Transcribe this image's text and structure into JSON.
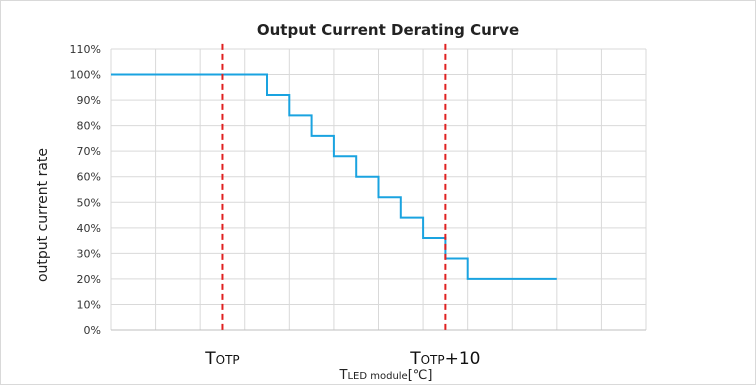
{
  "chart_data": {
    "type": "line",
    "title": "Output Current Derating Curve",
    "ylabel": "output current rate",
    "xlabel": {
      "prefix": "T",
      "sub": "LED module",
      "suffix": "[℃]"
    },
    "yticks": [
      "0%",
      "10%",
      "20%",
      "30%",
      "40%",
      "50%",
      "60%",
      "70%",
      "80%",
      "90%",
      "100%",
      "110%"
    ],
    "ylim": [
      0,
      110
    ],
    "xlim": [
      0,
      12
    ],
    "x_gridlines": [
      0,
      1,
      2,
      3,
      4,
      5,
      6,
      7,
      8,
      9,
      10,
      11,
      12
    ],
    "y_gridlines": [
      0,
      10,
      20,
      30,
      40,
      50,
      60,
      70,
      80,
      90,
      100,
      110
    ],
    "grid": true,
    "series": [
      {
        "color": "#1aa3e0",
        "step_points": [
          [
            0,
            100
          ],
          [
            3,
            100
          ],
          [
            3.5,
            100
          ],
          [
            3.5,
            92
          ],
          [
            4,
            92
          ],
          [
            4,
            84
          ],
          [
            4.5,
            84
          ],
          [
            4.5,
            76
          ],
          [
            5,
            76
          ],
          [
            5,
            68
          ],
          [
            5.5,
            68
          ],
          [
            5.5,
            60
          ],
          [
            6,
            60
          ],
          [
            6,
            52
          ],
          [
            6.5,
            52
          ],
          [
            6.5,
            44
          ],
          [
            7,
            44
          ],
          [
            7,
            36
          ],
          [
            7.5,
            36
          ],
          [
            7.5,
            28
          ],
          [
            8,
            28
          ],
          [
            8,
            20
          ],
          [
            8.5,
            20
          ],
          [
            9,
            20
          ],
          [
            9.5,
            20
          ],
          [
            10.0,
            20
          ]
        ]
      }
    ],
    "markers": [
      {
        "x": 2.5,
        "color": "#e02020",
        "label_main": "T",
        "label_sub": "OTP",
        "label_suffix": ""
      },
      {
        "x": 7.5,
        "color": "#e02020",
        "label_main": "T",
        "label_sub": "OTP",
        "label_suffix": "+10"
      }
    ]
  }
}
